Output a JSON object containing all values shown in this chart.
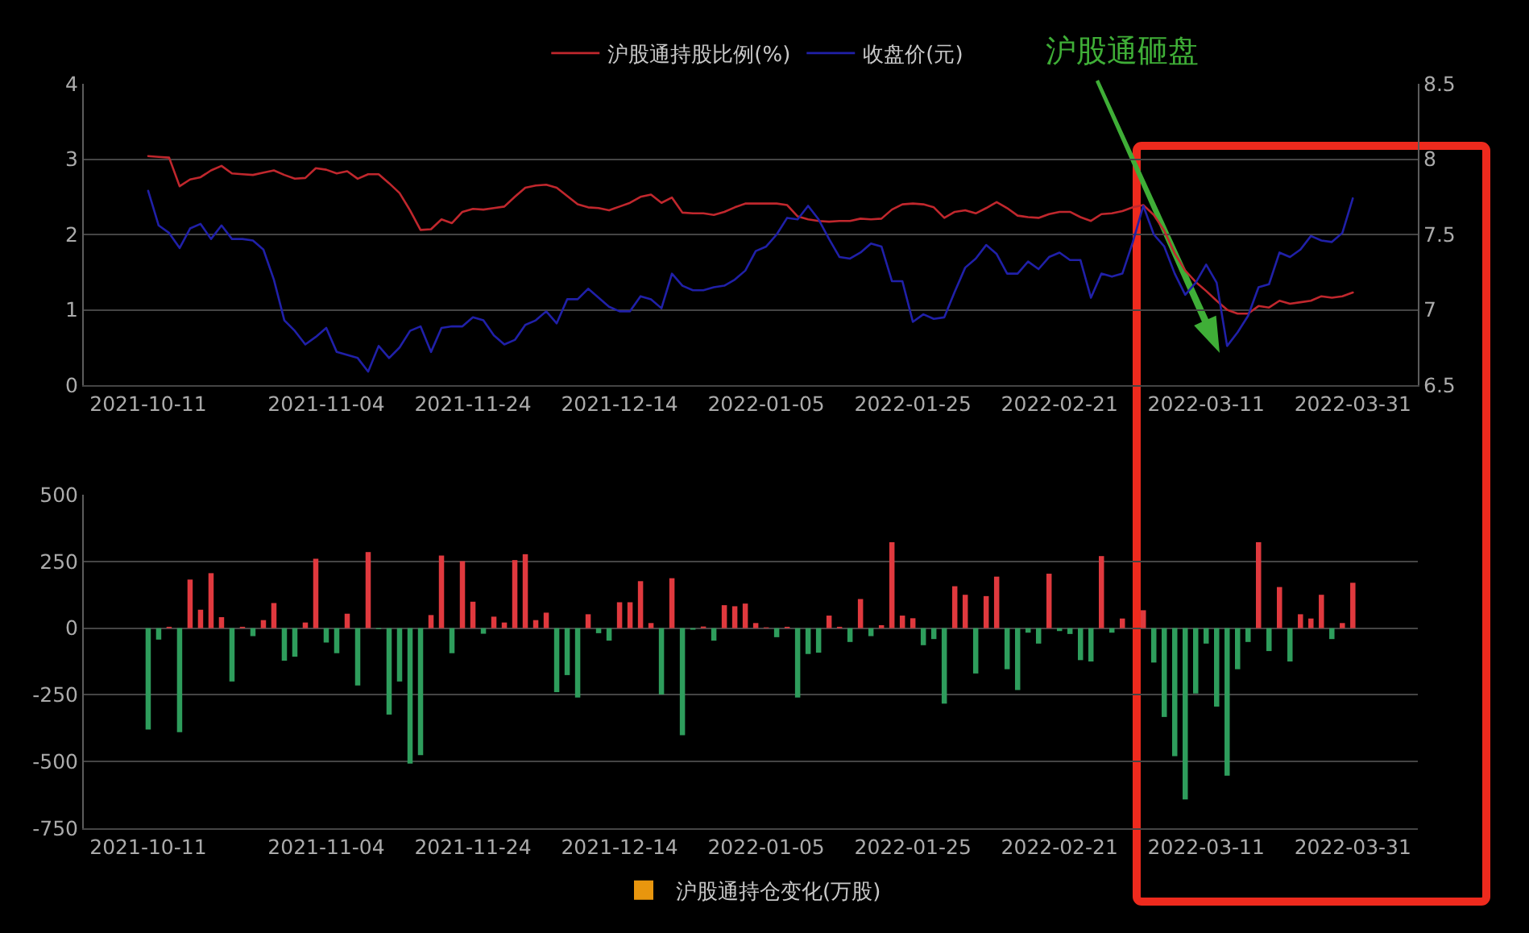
{
  "chart_data": [
    {
      "type": "line",
      "categories": [
        "2021-10-11",
        null,
        null,
        null,
        null,
        null,
        null,
        null,
        null,
        null,
        null,
        null,
        null,
        null,
        null,
        null,
        null,
        "2021-11-04",
        null,
        null,
        null,
        null,
        null,
        null,
        null,
        null,
        null,
        null,
        null,
        null,
        null,
        "2021-11-24",
        null,
        null,
        null,
        null,
        null,
        null,
        null,
        null,
        null,
        null,
        null,
        null,
        null,
        "2021-12-14",
        null,
        null,
        null,
        null,
        null,
        null,
        null,
        null,
        null,
        null,
        null,
        null,
        null,
        "2022-01-05",
        null,
        null,
        null,
        null,
        null,
        null,
        null,
        null,
        null,
        null,
        null,
        null,
        null,
        "2022-01-25",
        null,
        null,
        null,
        null,
        null,
        null,
        null,
        null,
        null,
        null,
        null,
        null,
        null,
        "2022-02-21",
        null,
        null,
        null,
        null,
        null,
        null,
        null,
        null,
        null,
        null,
        null,
        null,
        null,
        "2022-03-11",
        null,
        null,
        null,
        null,
        null,
        null,
        null,
        null,
        null,
        null,
        null,
        null,
        null,
        "2022-03-31"
      ],
      "series": [
        {
          "name": "沪股通持股比例(%)",
          "color": "#c0272d",
          "values": [
            3.04,
            3.03,
            3.02,
            2.64,
            2.73,
            2.76,
            2.85,
            2.91,
            2.81,
            2.8,
            2.79,
            2.82,
            2.85,
            2.79,
            2.74,
            2.75,
            2.88,
            2.86,
            2.81,
            2.84,
            2.74,
            2.8,
            2.8,
            2.68,
            2.55,
            2.32,
            2.06,
            2.07,
            2.2,
            2.15,
            2.3,
            2.34,
            2.33,
            2.35,
            2.37,
            2.5,
            2.62,
            2.65,
            2.66,
            2.62,
            2.51,
            2.4,
            2.36,
            2.35,
            2.32,
            2.37,
            2.42,
            2.5,
            2.53,
            2.42,
            2.49,
            2.29,
            2.28,
            2.28,
            2.26,
            2.3,
            2.36,
            2.41,
            2.41,
            2.41,
            2.41,
            2.39,
            2.24,
            2.2,
            2.18,
            2.17,
            2.18,
            2.18,
            2.21,
            2.2,
            2.21,
            2.33,
            2.4,
            2.41,
            2.4,
            2.36,
            2.22,
            2.3,
            2.32,
            2.28,
            2.35,
            2.43,
            2.35,
            2.25,
            2.23,
            2.22,
            2.27,
            2.3,
            2.3,
            2.23,
            2.18,
            2.27,
            2.28,
            2.31,
            2.36,
            2.39,
            2.26,
            2.05,
            1.75,
            1.52,
            1.37,
            1.25,
            1.12,
            1.0,
            0.95,
            0.95,
            1.05,
            1.03,
            1.12,
            1.08,
            1.1,
            1.12,
            1.18,
            1.16,
            1.18,
            1.23
          ]
        },
        {
          "name": "收盘价(元)",
          "color": "#2020a8",
          "axis": "y2",
          "values": [
            7.79,
            7.56,
            7.51,
            7.41,
            7.54,
            7.57,
            7.47,
            7.56,
            7.47,
            7.47,
            7.46,
            7.4,
            7.2,
            6.93,
            6.86,
            6.77,
            6.82,
            6.88,
            6.72,
            6.7,
            6.68,
            6.59,
            6.76,
            6.68,
            6.75,
            6.86,
            6.89,
            6.72,
            6.88,
            6.89,
            6.89,
            6.95,
            6.93,
            6.83,
            6.77,
            6.8,
            6.9,
            6.93,
            6.99,
            6.91,
            7.07,
            7.07,
            7.14,
            7.08,
            7.02,
            6.99,
            6.99,
            7.09,
            7.07,
            7.01,
            7.24,
            7.16,
            7.13,
            7.13,
            7.15,
            7.16,
            7.2,
            7.26,
            7.39,
            7.42,
            7.5,
            7.61,
            7.6,
            7.69,
            7.6,
            7.47,
            7.35,
            7.34,
            7.38,
            7.44,
            7.42,
            7.19,
            7.19,
            6.92,
            6.97,
            6.94,
            6.95,
            7.12,
            7.28,
            7.34,
            7.43,
            7.37,
            7.24,
            7.24,
            7.32,
            7.27,
            7.35,
            7.38,
            7.33,
            7.33,
            7.08,
            7.24,
            7.22,
            7.24,
            7.45,
            7.69,
            7.5,
            7.42,
            7.24,
            7.1,
            7.18,
            7.3,
            7.18,
            6.76,
            6.85,
            6.96,
            7.15,
            7.17,
            7.38,
            7.35,
            7.4,
            7.49,
            7.46,
            7.45,
            7.51,
            7.74
          ]
        }
      ],
      "ylim": [
        0,
        4
      ],
      "yticks": [
        0,
        1,
        2,
        3,
        4
      ],
      "y2lim": [
        6.5,
        8.5
      ],
      "y2ticks": [
        6.5,
        7,
        7.5,
        8,
        8.5
      ],
      "grid": "y",
      "legend": "top",
      "annotations": [
        "沪股通砸盘"
      ]
    },
    {
      "type": "bar",
      "categories": [
        "2021-10-11",
        null,
        null,
        null,
        null,
        null,
        null,
        null,
        null,
        null,
        null,
        null,
        null,
        null,
        null,
        null,
        null,
        "2021-11-04",
        null,
        null,
        null,
        null,
        null,
        null,
        null,
        null,
        null,
        null,
        null,
        null,
        null,
        "2021-11-24",
        null,
        null,
        null,
        null,
        null,
        null,
        null,
        null,
        null,
        null,
        null,
        null,
        null,
        "2021-12-14",
        null,
        null,
        null,
        null,
        null,
        null,
        null,
        null,
        null,
        null,
        null,
        null,
        null,
        "2022-01-05",
        null,
        null,
        null,
        null,
        null,
        null,
        null,
        null,
        null,
        null,
        null,
        null,
        null,
        "2022-01-25",
        null,
        null,
        null,
        null,
        null,
        null,
        null,
        null,
        null,
        null,
        null,
        null,
        null,
        "2022-02-21",
        null,
        null,
        null,
        null,
        null,
        null,
        null,
        null,
        null,
        null,
        null,
        null,
        null,
        "2022-03-11",
        null,
        null,
        null,
        null,
        null,
        null,
        null,
        null,
        null,
        null,
        null,
        null,
        null,
        "2022-03-31"
      ],
      "series": [
        {
          "name": "沪股通持仓变化(万股)",
          "color": "#e8960e",
          "colors": [
            "#2e9d5c",
            "#2e9d5c",
            "#e0393e",
            "#2e9d5c",
            "#e0393e",
            "#e0393e",
            "#e0393e",
            "#e0393e",
            "#2e9d5c",
            "#e0393e",
            "#2e9d5c",
            "#e0393e",
            "#e0393e",
            "#2e9d5c",
            "#2e9d5c",
            "#e0393e",
            "#e0393e",
            "#2e9d5c",
            "#2e9d5c",
            "#e0393e",
            "#2e9d5c",
            "#e0393e",
            "#2e9d5c",
            "#2e9d5c",
            "#2e9d5c",
            "#2e9d5c",
            "#2e9d5c",
            "#e0393e",
            "#e0393e",
            "#2e9d5c",
            "#e0393e",
            "#e0393e",
            "#2e9d5c",
            "#e0393e",
            "#e0393e",
            "#e0393e",
            "#e0393e",
            "#e0393e",
            "#e0393e",
            "#2e9d5c",
            "#2e9d5c",
            "#2e9d5c",
            "#e0393e",
            "#2e9d5c",
            "#2e9d5c",
            "#e0393e",
            "#e0393e",
            "#e0393e",
            "#e0393e",
            "#2e9d5c",
            "#e0393e",
            "#2e9d5c",
            "#2e9d5c",
            "#e0393e",
            "#2e9d5c",
            "#e0393e",
            "#e0393e",
            "#e0393e",
            "#e0393e",
            "#e0393e",
            "#2e9d5c",
            "#e0393e",
            "#2e9d5c",
            "#2e9d5c",
            "#2e9d5c",
            "#e0393e",
            "#e0393e",
            "#2e9d5c",
            "#e0393e",
            "#2e9d5c",
            "#e0393e",
            "#e0393e",
            "#e0393e",
            "#e0393e",
            "#2e9d5c",
            "#2e9d5c",
            "#2e9d5c",
            "#e0393e",
            "#e0393e",
            "#2e9d5c",
            "#e0393e",
            "#e0393e",
            "#2e9d5c",
            "#2e9d5c",
            "#2e9d5c",
            "#2e9d5c",
            "#e0393e",
            "#2e9d5c",
            "#2e9d5c",
            "#2e9d5c",
            "#2e9d5c",
            "#e0393e",
            "#2e9d5c",
            "#e0393e",
            null,
            "#e0393e",
            "#2e9d5c",
            "#2e9d5c",
            "#2e9d5c",
            "#2e9d5c",
            "#2e9d5c",
            "#2e9d5c",
            "#2e9d5c",
            "#2e9d5c",
            "#2e9d5c",
            "#2e9d5c",
            "#e0393e",
            "#2e9d5c",
            "#e0393e",
            "#2e9d5c",
            "#e0393e",
            "#e0393e",
            "#e0393e",
            "#2e9d5c",
            "#e0393e",
            "#e0393e"
          ],
          "values": [
            -380,
            -43,
            5,
            -390,
            182,
            69,
            206,
            41,
            -200,
            5,
            -30,
            30,
            94,
            -122,
            -107,
            21,
            260,
            -54,
            -94,
            54,
            -215,
            285,
            -4,
            -324,
            -200,
            -508,
            -476,
            49,
            272,
            -94,
            251,
            99,
            -21,
            43,
            21,
            255,
            277,
            30,
            58,
            -240,
            -176,
            -260,
            52,
            -19,
            -47,
            97,
            97,
            176,
            19,
            -249,
            187,
            -401,
            -6,
            6,
            -47,
            86,
            82,
            92,
            19,
            3,
            -34,
            5,
            -260,
            -97,
            -92,
            47,
            5,
            -52,
            109,
            -30,
            11,
            322,
            47,
            37,
            -64,
            -41,
            -283,
            157,
            125,
            -170,
            120,
            193,
            -154,
            -232,
            -17,
            -58,
            204,
            -11,
            -22,
            -120,
            -125,
            270,
            -17,
            36,
            null,
            67,
            -129,
            -333,
            -480,
            -642,
            -245,
            -58,
            -294,
            -553,
            -154,
            -52,
            322,
            -86,
            154,
            -125,
            52,
            36,
            125,
            -41,
            19,
            170
          ]
        }
      ],
      "ylim": [
        -750,
        500
      ],
      "yticks": [
        -750,
        -500,
        -250,
        0,
        250,
        500
      ],
      "grid": "y",
      "legend": "bottom"
    }
  ]
}
